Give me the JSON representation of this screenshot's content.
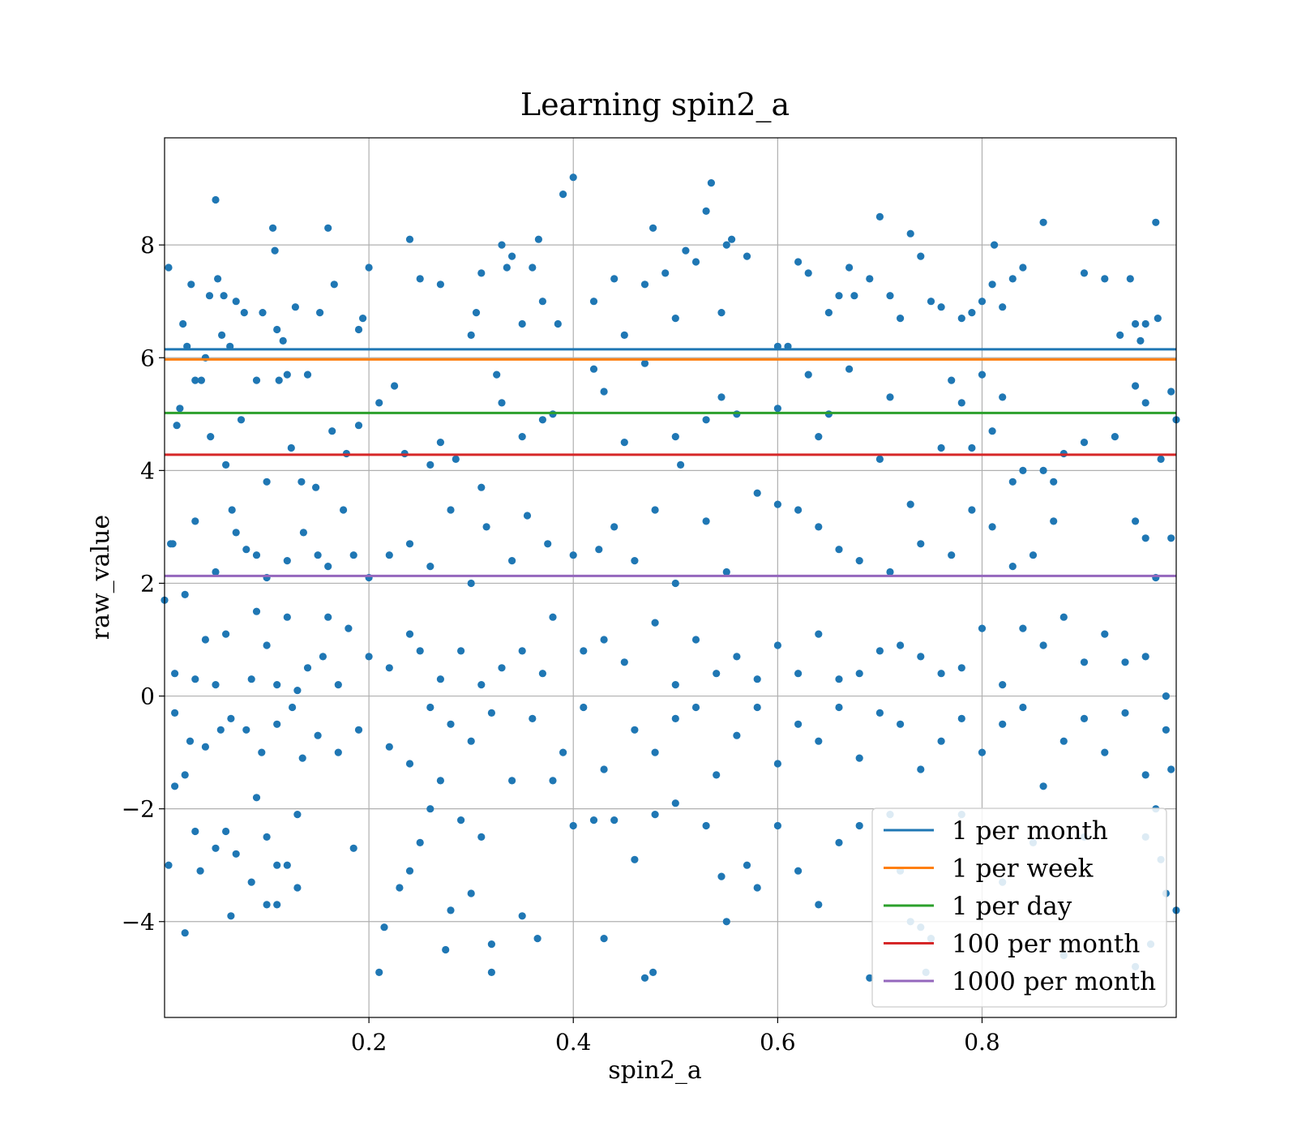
{
  "chart_data": {
    "type": "scatter",
    "title": "Learning spin2_a",
    "xlabel": "spin2_a",
    "ylabel": "raw_value",
    "xlim": [
      0.0,
      0.99
    ],
    "ylim": [
      -5.7,
      9.9
    ],
    "x_ticks": [
      0.2,
      0.4,
      0.6,
      0.8
    ],
    "x_tick_labels": [
      "0.2",
      "0.4",
      "0.6",
      "0.8"
    ],
    "y_ticks": [
      -4,
      -2,
      0,
      2,
      4,
      6,
      8
    ],
    "y_tick_labels": [
      "−4",
      "−2",
      "0",
      "2",
      "4",
      "6",
      "8"
    ],
    "grid": true,
    "legend_position": "lower-right",
    "points_color": "#1f77b4",
    "points": [
      [
        0.004,
        7.6
      ],
      [
        0.008,
        2.7
      ],
      [
        0.012,
        4.8
      ],
      [
        0.018,
        6.6
      ],
      [
        0.022,
        6.2
      ],
      [
        0.026,
        7.3
      ],
      [
        0.03,
        5.6
      ],
      [
        0.036,
        5.6
      ],
      [
        0.04,
        6.0
      ],
      [
        0.044,
        7.1
      ],
      [
        0.05,
        8.8
      ],
      [
        0.052,
        7.4
      ],
      [
        0.058,
        7.1
      ],
      [
        0.064,
        6.2
      ],
      [
        0.07,
        7.0
      ],
      [
        0.078,
        6.8
      ],
      [
        0.09,
        5.6
      ],
      [
        0.096,
        6.8
      ],
      [
        0.106,
        8.3
      ],
      [
        0.108,
        7.9
      ],
      [
        0.11,
        6.5
      ],
      [
        0.116,
        6.3
      ],
      [
        0.12,
        5.7
      ],
      [
        0.128,
        6.9
      ],
      [
        0.14,
        5.7
      ],
      [
        0.152,
        6.8
      ],
      [
        0.16,
        8.3
      ],
      [
        0.166,
        7.3
      ],
      [
        0.19,
        6.5
      ],
      [
        0.194,
        6.7
      ],
      [
        0.2,
        7.6
      ],
      [
        0.24,
        8.1
      ],
      [
        0.25,
        7.4
      ],
      [
        0.27,
        7.3
      ],
      [
        0.3,
        6.4
      ],
      [
        0.305,
        6.8
      ],
      [
        0.31,
        7.5
      ],
      [
        0.33,
        8.0
      ],
      [
        0.335,
        7.6
      ],
      [
        0.34,
        7.8
      ],
      [
        0.35,
        6.6
      ],
      [
        0.36,
        7.6
      ],
      [
        0.366,
        8.1
      ],
      [
        0.37,
        7.0
      ],
      [
        0.385,
        6.6
      ],
      [
        0.39,
        8.9
      ],
      [
        0.4,
        9.2
      ],
      [
        0.42,
        7.0
      ],
      [
        0.44,
        7.4
      ],
      [
        0.45,
        6.4
      ],
      [
        0.47,
        7.3
      ],
      [
        0.478,
        8.3
      ],
      [
        0.49,
        7.5
      ],
      [
        0.5,
        6.7
      ],
      [
        0.51,
        7.9
      ],
      [
        0.52,
        7.7
      ],
      [
        0.53,
        8.6
      ],
      [
        0.535,
        9.1
      ],
      [
        0.545,
        6.8
      ],
      [
        0.55,
        8.0
      ],
      [
        0.555,
        8.1
      ],
      [
        0.57,
        7.8
      ],
      [
        0.6,
        6.2
      ],
      [
        0.61,
        6.2
      ],
      [
        0.62,
        7.7
      ],
      [
        0.63,
        7.5
      ],
      [
        0.65,
        6.8
      ],
      [
        0.66,
        7.1
      ],
      [
        0.67,
        7.6
      ],
      [
        0.675,
        7.1
      ],
      [
        0.69,
        7.4
      ],
      [
        0.7,
        8.5
      ],
      [
        0.71,
        7.1
      ],
      [
        0.72,
        6.7
      ],
      [
        0.73,
        8.2
      ],
      [
        0.74,
        7.8
      ],
      [
        0.75,
        7.0
      ],
      [
        0.76,
        6.9
      ],
      [
        0.78,
        6.7
      ],
      [
        0.79,
        6.8
      ],
      [
        0.8,
        7.0
      ],
      [
        0.81,
        7.3
      ],
      [
        0.812,
        8.0
      ],
      [
        0.82,
        6.9
      ],
      [
        0.83,
        7.4
      ],
      [
        0.84,
        7.6
      ],
      [
        0.86,
        8.4
      ],
      [
        0.9,
        7.5
      ],
      [
        0.92,
        7.4
      ],
      [
        0.935,
        6.4
      ],
      [
        0.945,
        7.4
      ],
      [
        0.95,
        6.6
      ],
      [
        0.955,
        6.3
      ],
      [
        0.96,
        6.6
      ],
      [
        0.97,
        8.4
      ],
      [
        0.972,
        6.7
      ],
      [
        0.015,
        5.1
      ],
      [
        0.045,
        4.6
      ],
      [
        0.056,
        6.4
      ],
      [
        0.06,
        4.1
      ],
      [
        0.075,
        4.9
      ],
      [
        0.1,
        3.8
      ],
      [
        0.112,
        5.6
      ],
      [
        0.124,
        4.4
      ],
      [
        0.134,
        3.8
      ],
      [
        0.148,
        3.7
      ],
      [
        0.164,
        4.7
      ],
      [
        0.178,
        4.3
      ],
      [
        0.19,
        4.8
      ],
      [
        0.21,
        5.2
      ],
      [
        0.225,
        5.5
      ],
      [
        0.235,
        4.3
      ],
      [
        0.26,
        4.1
      ],
      [
        0.27,
        4.5
      ],
      [
        0.285,
        4.2
      ],
      [
        0.31,
        3.7
      ],
      [
        0.325,
        5.7
      ],
      [
        0.33,
        5.2
      ],
      [
        0.35,
        4.6
      ],
      [
        0.37,
        4.9
      ],
      [
        0.38,
        5.0
      ],
      [
        0.42,
        5.8
      ],
      [
        0.43,
        5.4
      ],
      [
        0.45,
        4.5
      ],
      [
        0.47,
        5.9
      ],
      [
        0.5,
        4.6
      ],
      [
        0.505,
        4.1
      ],
      [
        0.53,
        4.9
      ],
      [
        0.545,
        5.3
      ],
      [
        0.56,
        5.0
      ],
      [
        0.6,
        5.1
      ],
      [
        0.63,
        5.7
      ],
      [
        0.64,
        4.6
      ],
      [
        0.65,
        5.0
      ],
      [
        0.67,
        5.8
      ],
      [
        0.7,
        4.2
      ],
      [
        0.71,
        5.3
      ],
      [
        0.76,
        4.4
      ],
      [
        0.77,
        5.6
      ],
      [
        0.78,
        5.2
      ],
      [
        0.79,
        4.4
      ],
      [
        0.8,
        5.7
      ],
      [
        0.81,
        4.7
      ],
      [
        0.82,
        5.3
      ],
      [
        0.83,
        3.8
      ],
      [
        0.84,
        4.0
      ],
      [
        0.86,
        4.0
      ],
      [
        0.87,
        3.8
      ],
      [
        0.88,
        4.3
      ],
      [
        0.9,
        4.5
      ],
      [
        0.93,
        4.6
      ],
      [
        0.95,
        5.5
      ],
      [
        0.96,
        5.2
      ],
      [
        0.975,
        4.2
      ],
      [
        0.985,
        5.4
      ],
      [
        0.99,
        4.9
      ],
      [
        0.006,
        2.7
      ],
      [
        0.02,
        1.8
      ],
      [
        0.03,
        3.1
      ],
      [
        0.05,
        2.2
      ],
      [
        0.066,
        3.3
      ],
      [
        0.07,
        2.9
      ],
      [
        0.08,
        2.6
      ],
      [
        0.09,
        2.5
      ],
      [
        0.1,
        2.1
      ],
      [
        0.12,
        2.4
      ],
      [
        0.136,
        2.9
      ],
      [
        0.15,
        2.5
      ],
      [
        0.16,
        2.3
      ],
      [
        0.175,
        3.3
      ],
      [
        0.185,
        2.5
      ],
      [
        0.2,
        2.1
      ],
      [
        0.22,
        2.5
      ],
      [
        0.24,
        2.7
      ],
      [
        0.26,
        2.3
      ],
      [
        0.28,
        3.3
      ],
      [
        0.3,
        2.0
      ],
      [
        0.315,
        3.0
      ],
      [
        0.34,
        2.4
      ],
      [
        0.355,
        3.2
      ],
      [
        0.375,
        2.7
      ],
      [
        0.4,
        2.5
      ],
      [
        0.425,
        2.6
      ],
      [
        0.44,
        3.0
      ],
      [
        0.46,
        2.4
      ],
      [
        0.48,
        3.3
      ],
      [
        0.5,
        2.0
      ],
      [
        0.53,
        3.1
      ],
      [
        0.55,
        2.2
      ],
      [
        0.58,
        3.6
      ],
      [
        0.6,
        3.4
      ],
      [
        0.62,
        3.3
      ],
      [
        0.64,
        3.0
      ],
      [
        0.66,
        2.6
      ],
      [
        0.68,
        2.4
      ],
      [
        0.71,
        2.2
      ],
      [
        0.73,
        3.4
      ],
      [
        0.74,
        2.7
      ],
      [
        0.77,
        2.5
      ],
      [
        0.79,
        3.3
      ],
      [
        0.81,
        3.0
      ],
      [
        0.83,
        2.3
      ],
      [
        0.85,
        2.5
      ],
      [
        0.87,
        3.1
      ],
      [
        0.95,
        3.1
      ],
      [
        0.96,
        2.8
      ],
      [
        0.97,
        2.1
      ],
      [
        0.985,
        2.8
      ],
      [
        0.0,
        1.7
      ],
      [
        0.01,
        0.4
      ],
      [
        0.03,
        0.3
      ],
      [
        0.04,
        1.0
      ],
      [
        0.05,
        0.2
      ],
      [
        0.06,
        1.1
      ],
      [
        0.085,
        0.3
      ],
      [
        0.09,
        1.5
      ],
      [
        0.1,
        0.9
      ],
      [
        0.11,
        0.2
      ],
      [
        0.12,
        1.4
      ],
      [
        0.13,
        0.1
      ],
      [
        0.14,
        0.5
      ],
      [
        0.155,
        0.7
      ],
      [
        0.16,
        1.4
      ],
      [
        0.17,
        0.2
      ],
      [
        0.18,
        1.2
      ],
      [
        0.2,
        0.7
      ],
      [
        0.22,
        0.5
      ],
      [
        0.24,
        1.1
      ],
      [
        0.25,
        0.8
      ],
      [
        0.27,
        0.3
      ],
      [
        0.29,
        0.8
      ],
      [
        0.31,
        0.2
      ],
      [
        0.33,
        0.5
      ],
      [
        0.35,
        0.8
      ],
      [
        0.37,
        0.4
      ],
      [
        0.38,
        1.4
      ],
      [
        0.41,
        0.8
      ],
      [
        0.43,
        1.0
      ],
      [
        0.45,
        0.6
      ],
      [
        0.48,
        1.3
      ],
      [
        0.5,
        0.2
      ],
      [
        0.52,
        1.0
      ],
      [
        0.54,
        0.4
      ],
      [
        0.56,
        0.7
      ],
      [
        0.58,
        0.3
      ],
      [
        0.6,
        0.9
      ],
      [
        0.62,
        0.4
      ],
      [
        0.64,
        1.1
      ],
      [
        0.66,
        0.3
      ],
      [
        0.68,
        0.4
      ],
      [
        0.7,
        0.8
      ],
      [
        0.72,
        0.9
      ],
      [
        0.74,
        0.7
      ],
      [
        0.76,
        0.4
      ],
      [
        0.78,
        0.5
      ],
      [
        0.8,
        1.2
      ],
      [
        0.82,
        0.2
      ],
      [
        0.84,
        1.2
      ],
      [
        0.86,
        0.9
      ],
      [
        0.88,
        1.4
      ],
      [
        0.9,
        0.6
      ],
      [
        0.92,
        1.1
      ],
      [
        0.94,
        0.6
      ],
      [
        0.96,
        0.7
      ],
      [
        0.98,
        0.0
      ],
      [
        0.01,
        -0.3
      ],
      [
        0.025,
        -0.8
      ],
      [
        0.04,
        -0.9
      ],
      [
        0.055,
        -0.6
      ],
      [
        0.065,
        -0.4
      ],
      [
        0.08,
        -0.6
      ],
      [
        0.095,
        -1.0
      ],
      [
        0.11,
        -0.5
      ],
      [
        0.125,
        -0.2
      ],
      [
        0.135,
        -1.1
      ],
      [
        0.15,
        -0.7
      ],
      [
        0.17,
        -1.0
      ],
      [
        0.19,
        -0.6
      ],
      [
        0.22,
        -0.9
      ],
      [
        0.24,
        -1.2
      ],
      [
        0.26,
        -0.2
      ],
      [
        0.28,
        -0.5
      ],
      [
        0.3,
        -0.8
      ],
      [
        0.32,
        -0.3
      ],
      [
        0.34,
        -1.5
      ],
      [
        0.36,
        -0.4
      ],
      [
        0.39,
        -1.0
      ],
      [
        0.41,
        -0.2
      ],
      [
        0.43,
        -1.3
      ],
      [
        0.46,
        -0.6
      ],
      [
        0.48,
        -1.0
      ],
      [
        0.5,
        -0.4
      ],
      [
        0.52,
        -0.2
      ],
      [
        0.54,
        -1.4
      ],
      [
        0.56,
        -0.7
      ],
      [
        0.58,
        -0.2
      ],
      [
        0.6,
        -1.2
      ],
      [
        0.62,
        -0.5
      ],
      [
        0.64,
        -0.8
      ],
      [
        0.66,
        -0.2
      ],
      [
        0.68,
        -1.1
      ],
      [
        0.7,
        -0.3
      ],
      [
        0.72,
        -0.5
      ],
      [
        0.74,
        -1.3
      ],
      [
        0.76,
        -0.8
      ],
      [
        0.78,
        -0.4
      ],
      [
        0.8,
        -1.0
      ],
      [
        0.82,
        -0.5
      ],
      [
        0.84,
        -0.2
      ],
      [
        0.86,
        -1.6
      ],
      [
        0.88,
        -0.8
      ],
      [
        0.9,
        -0.4
      ],
      [
        0.92,
        -1.0
      ],
      [
        0.94,
        -0.3
      ],
      [
        0.96,
        -1.4
      ],
      [
        0.98,
        -0.6
      ],
      [
        0.01,
        -1.6
      ],
      [
        0.02,
        -1.4
      ],
      [
        0.05,
        -2.7
      ],
      [
        0.07,
        -2.8
      ],
      [
        0.09,
        -1.8
      ],
      [
        0.1,
        -2.5
      ],
      [
        0.11,
        -3.0
      ],
      [
        0.13,
        -2.1
      ],
      [
        0.03,
        -2.4
      ],
      [
        0.035,
        -3.1
      ],
      [
        0.06,
        -2.4
      ],
      [
        0.085,
        -3.3
      ],
      [
        0.1,
        -3.7
      ],
      [
        0.12,
        -3.0
      ],
      [
        0.13,
        -3.4
      ],
      [
        0.004,
        -3.0
      ],
      [
        0.02,
        -4.2
      ],
      [
        0.065,
        -3.9
      ],
      [
        0.11,
        -3.7
      ],
      [
        0.185,
        -2.7
      ],
      [
        0.21,
        -4.9
      ],
      [
        0.215,
        -4.1
      ],
      [
        0.23,
        -3.4
      ],
      [
        0.24,
        -3.1
      ],
      [
        0.25,
        -2.6
      ],
      [
        0.26,
        -2.0
      ],
      [
        0.27,
        -1.5
      ],
      [
        0.28,
        -3.8
      ],
      [
        0.275,
        -4.5
      ],
      [
        0.29,
        -2.2
      ],
      [
        0.3,
        -3.5
      ],
      [
        0.31,
        -2.5
      ],
      [
        0.32,
        -4.9
      ],
      [
        0.32,
        -4.4
      ],
      [
        0.35,
        -3.9
      ],
      [
        0.365,
        -4.3
      ],
      [
        0.38,
        -1.5
      ],
      [
        0.4,
        -2.3
      ],
      [
        0.42,
        -2.2
      ],
      [
        0.44,
        -2.2
      ],
      [
        0.43,
        -4.3
      ],
      [
        0.46,
        -2.9
      ],
      [
        0.47,
        -5.0
      ],
      [
        0.478,
        -4.9
      ],
      [
        0.48,
        -2.1
      ],
      [
        0.5,
        -1.9
      ],
      [
        0.53,
        -2.3
      ],
      [
        0.545,
        -3.2
      ],
      [
        0.55,
        -4.0
      ],
      [
        0.57,
        -3.0
      ],
      [
        0.58,
        -3.4
      ],
      [
        0.6,
        -2.3
      ],
      [
        0.62,
        -3.1
      ],
      [
        0.64,
        -3.7
      ],
      [
        0.66,
        -2.6
      ],
      [
        0.68,
        -2.3
      ],
      [
        0.69,
        -5.0
      ],
      [
        0.71,
        -2.1
      ],
      [
        0.72,
        -3.1
      ],
      [
        0.73,
        -4.0
      ],
      [
        0.74,
        -4.1
      ],
      [
        0.75,
        -4.3
      ],
      [
        0.745,
        -4.9
      ],
      [
        0.78,
        -2.1
      ],
      [
        0.82,
        -3.3
      ],
      [
        0.85,
        -2.6
      ],
      [
        0.88,
        -4.6
      ],
      [
        0.9,
        -2.5
      ],
      [
        0.95,
        -4.8
      ],
      [
        0.96,
        -2.5
      ],
      [
        0.965,
        -4.4
      ],
      [
        0.97,
        -2.0
      ],
      [
        0.975,
        -2.9
      ],
      [
        0.98,
        -3.5
      ],
      [
        0.99,
        -3.8
      ],
      [
        0.985,
        -1.3
      ]
    ],
    "series": [
      {
        "name": "1 per month",
        "value": 6.15,
        "color": "#1f77b4"
      },
      {
        "name": "1 per week",
        "value": 5.97,
        "color": "#ff7f0e"
      },
      {
        "name": "1 per day",
        "value": 5.02,
        "color": "#2ca02c"
      },
      {
        "name": "100 per month",
        "value": 4.28,
        "color": "#d62728"
      },
      {
        "name": "1000 per month",
        "value": 2.13,
        "color": "#9467bd"
      }
    ]
  }
}
